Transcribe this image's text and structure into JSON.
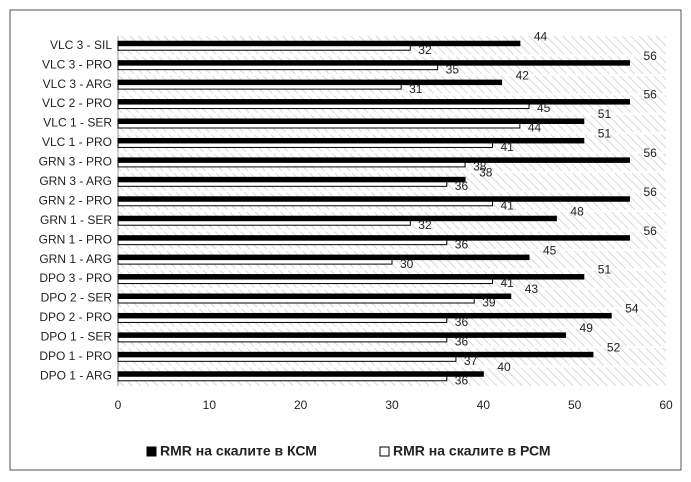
{
  "chart_data": {
    "type": "bar",
    "orientation": "horizontal",
    "categories": [
      "VLC 3 - SIL",
      "VLC 3 - PRO",
      "VLC 3 - ARG",
      "VLC 2 - PRO",
      "VLC 1 - SER",
      "VLC 1 - PRO",
      "GRN 3 - PRO",
      "GRN 3 - ARG",
      "GRN 2 - PRO",
      "GRN 1 - SER",
      "GRN 1 - PRO",
      "GRN 1 - ARG",
      "DPO 3 - PRO",
      "DPO 2 - SER",
      "DPO 2 - PRO",
      "DPO 1 - SER",
      "DPO 1 - PRO",
      "DPO 1 - ARG"
    ],
    "series": [
      {
        "name": "RMR на скалите в КСМ",
        "color": "#000000",
        "values": [
          44,
          56,
          42,
          56,
          51,
          51,
          56,
          38,
          56,
          48,
          56,
          45,
          51,
          43,
          54,
          49,
          52,
          40
        ]
      },
      {
        "name": "RMR на скалите в РСМ",
        "color": "#ffffff",
        "values": [
          32,
          35,
          31,
          45,
          44,
          41,
          38,
          36,
          41,
          32,
          36,
          30,
          41,
          39,
          36,
          36,
          37,
          36
        ]
      }
    ],
    "xlim": [
      0,
      60
    ],
    "xticks": [
      0,
      10,
      20,
      30,
      40,
      50,
      60
    ],
    "legend": "bottom"
  }
}
